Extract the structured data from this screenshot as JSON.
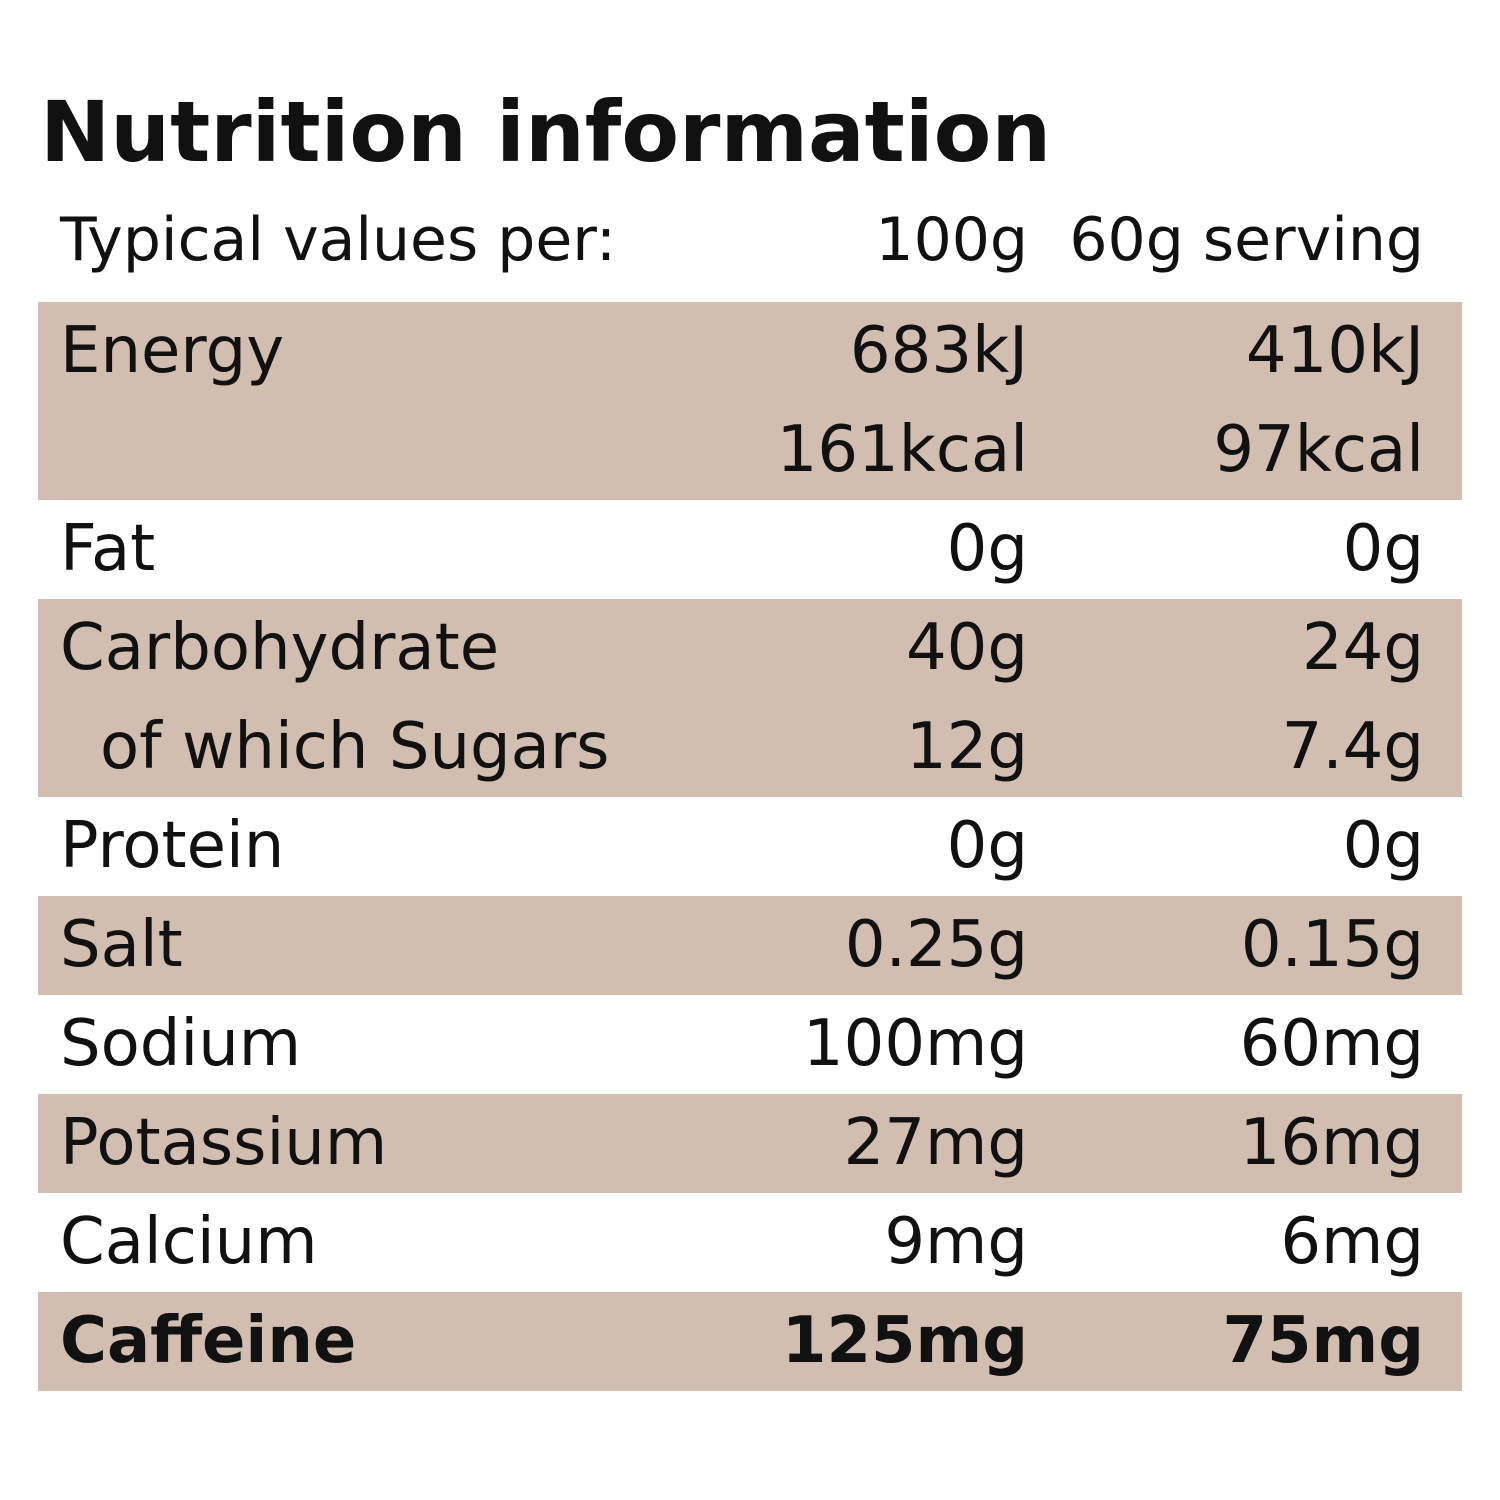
{
  "title": "Nutrition information",
  "header": {
    "label": "Typical values per:",
    "col_a": "100g",
    "col_b": "60g serving"
  },
  "rows": [
    {
      "label": "Energy",
      "a": "683kJ",
      "b": "410kJ"
    },
    {
      "label": "",
      "a": "161kcal",
      "b": "97kcal"
    },
    {
      "label": "Fat",
      "a": "0g",
      "b": "0g"
    },
    {
      "label": "Carbohydrate",
      "a": "40g",
      "b": "24g"
    },
    {
      "label": "of which Sugars",
      "a": "12g",
      "b": "7.4g"
    },
    {
      "label": "Protein",
      "a": "0g",
      "b": "0g"
    },
    {
      "label": "Salt",
      "a": "0.25g",
      "b": "0.15g"
    },
    {
      "label": "Sodium",
      "a": "100mg",
      "b": "60mg"
    },
    {
      "label": "Potassium",
      "a": "27mg",
      "b": "16mg"
    },
    {
      "label": "Calcium",
      "a": "9mg",
      "b": "6mg"
    },
    {
      "label": "Caffeine",
      "a": "125mg",
      "b": "75mg"
    }
  ],
  "colors": {
    "shade": "#d2bdb1",
    "text": "#111111",
    "background": "#ffffff"
  }
}
